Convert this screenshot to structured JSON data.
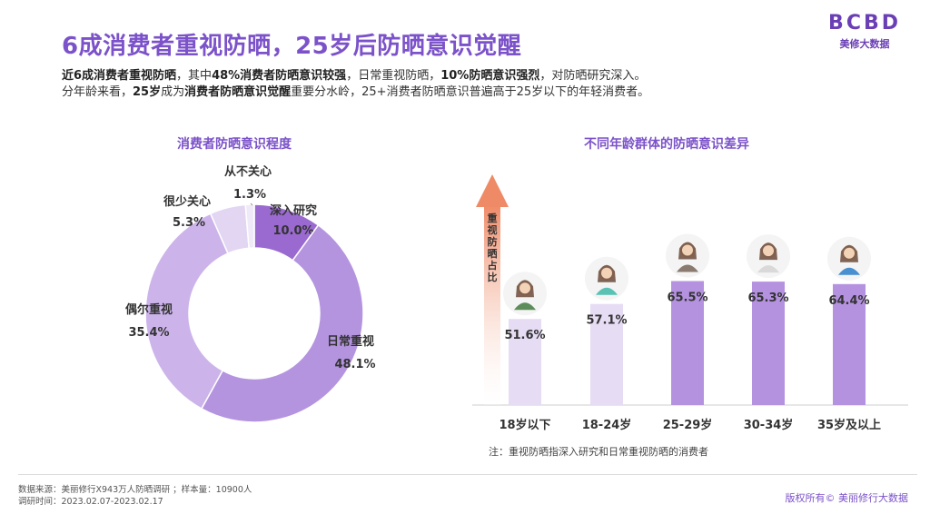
{
  "title": "6成消费者重视防晒，25岁后防晒意识觉醒",
  "logo": {
    "mark": "BCBD",
    "sub": "美修大数据"
  },
  "intro": {
    "line1": [
      {
        "t": "近6成消费者重视防晒",
        "b": true
      },
      {
        "t": "，其中",
        "b": false
      },
      {
        "t": "48%消费者防晒意识较强",
        "b": true
      },
      {
        "t": "，日常重视防晒，",
        "b": false
      },
      {
        "t": "10%防晒意识强烈",
        "b": true
      },
      {
        "t": "，对防晒研究深入。",
        "b": false
      }
    ],
    "line2": [
      {
        "t": "分年龄来看，",
        "b": false
      },
      {
        "t": "25岁",
        "b": true
      },
      {
        "t": "成为",
        "b": false
      },
      {
        "t": "消费者防晒意识觉醒",
        "b": true
      },
      {
        "t": "重要分水岭，25+消费者防晒意识普遍高于25岁以下的年轻消费者。",
        "b": false
      }
    ]
  },
  "chart_data": [
    {
      "type": "pie",
      "title": "消费者防晒意识程度",
      "categories": [
        "深入研究",
        "日常重视",
        "偶尔重视",
        "很少关心",
        "从不关心"
      ],
      "values": [
        10.0,
        48.1,
        35.4,
        5.3,
        1.3
      ],
      "value_labels": [
        "10.0%",
        "48.1%",
        "35.4%",
        "5.3%",
        "1.3%"
      ],
      "colors": [
        "#9a6ad0",
        "#b494df",
        "#ccb4ea",
        "#e2d6f3",
        "#efe9f8"
      ]
    },
    {
      "type": "bar",
      "title": "不同年龄群体的防晒意识差异",
      "categories": [
        "18岁以下",
        "18-24岁",
        "25-29岁",
        "30-34岁",
        "35岁及以上"
      ],
      "values": [
        51.6,
        57.1,
        65.5,
        65.3,
        64.4
      ],
      "value_labels": [
        "51.6%",
        "57.1%",
        "65.5%",
        "65.3%",
        "64.4%"
      ],
      "colors": [
        "#e6dcf4",
        "#e6dcf4",
        "#b592e0",
        "#b592e0",
        "#b592e0"
      ],
      "arrow_label": "重视防晒占比",
      "note": "注：重视防晒指深入研究和日常重视防晒的消费者"
    }
  ],
  "footer": {
    "source": "数据来源：美丽修行X943万人防晒调研 ；样本量：10900人",
    "period": "调研时间：2023.02.07-2023.02.17",
    "copyright": "版权所有© 美丽修行大数据"
  }
}
